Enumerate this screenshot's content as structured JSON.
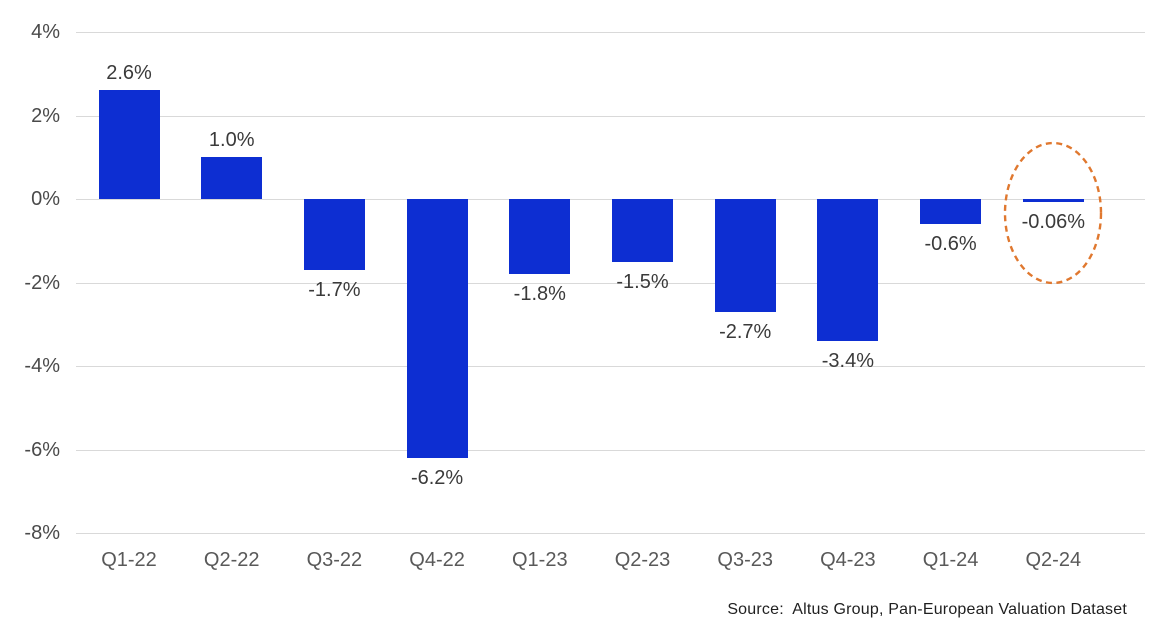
{
  "chart_data": {
    "type": "bar",
    "title": "",
    "xlabel": "",
    "ylabel": "",
    "categories": [
      "Q1-22",
      "Q2-22",
      "Q3-22",
      "Q4-22",
      "Q1-23",
      "Q2-23",
      "Q3-23",
      "Q4-23",
      "Q1-24",
      "Q2-24"
    ],
    "values": [
      2.6,
      1.0,
      -1.7,
      -6.2,
      -1.8,
      -1.5,
      -2.7,
      -3.4,
      -0.6,
      -0.06
    ],
    "value_labels": [
      "2.6%",
      "1.0%",
      "-1.7%",
      "-6.2%",
      "-1.8%",
      "-1.5%",
      "-2.7%",
      "-3.4%",
      "-0.6%",
      "-0.06%"
    ],
    "ylim": [
      -8,
      4
    ],
    "ytick_values": [
      4,
      2,
      0,
      -2,
      -4,
      -6,
      -8
    ],
    "ytick_labels": [
      "4%",
      "2%",
      "0%",
      "-2%",
      "-4%",
      "-6%",
      "-8%"
    ],
    "grid": true,
    "legend": "none",
    "bar_color": "#0d2ed2",
    "gridline_color": "#d9d9d9",
    "highlight": {
      "category": "Q2-24",
      "shape": "dashed-ellipse",
      "color": "#e0782f"
    }
  },
  "source_note": "Source:  Altus Group, Pan-European Valuation Dataset"
}
